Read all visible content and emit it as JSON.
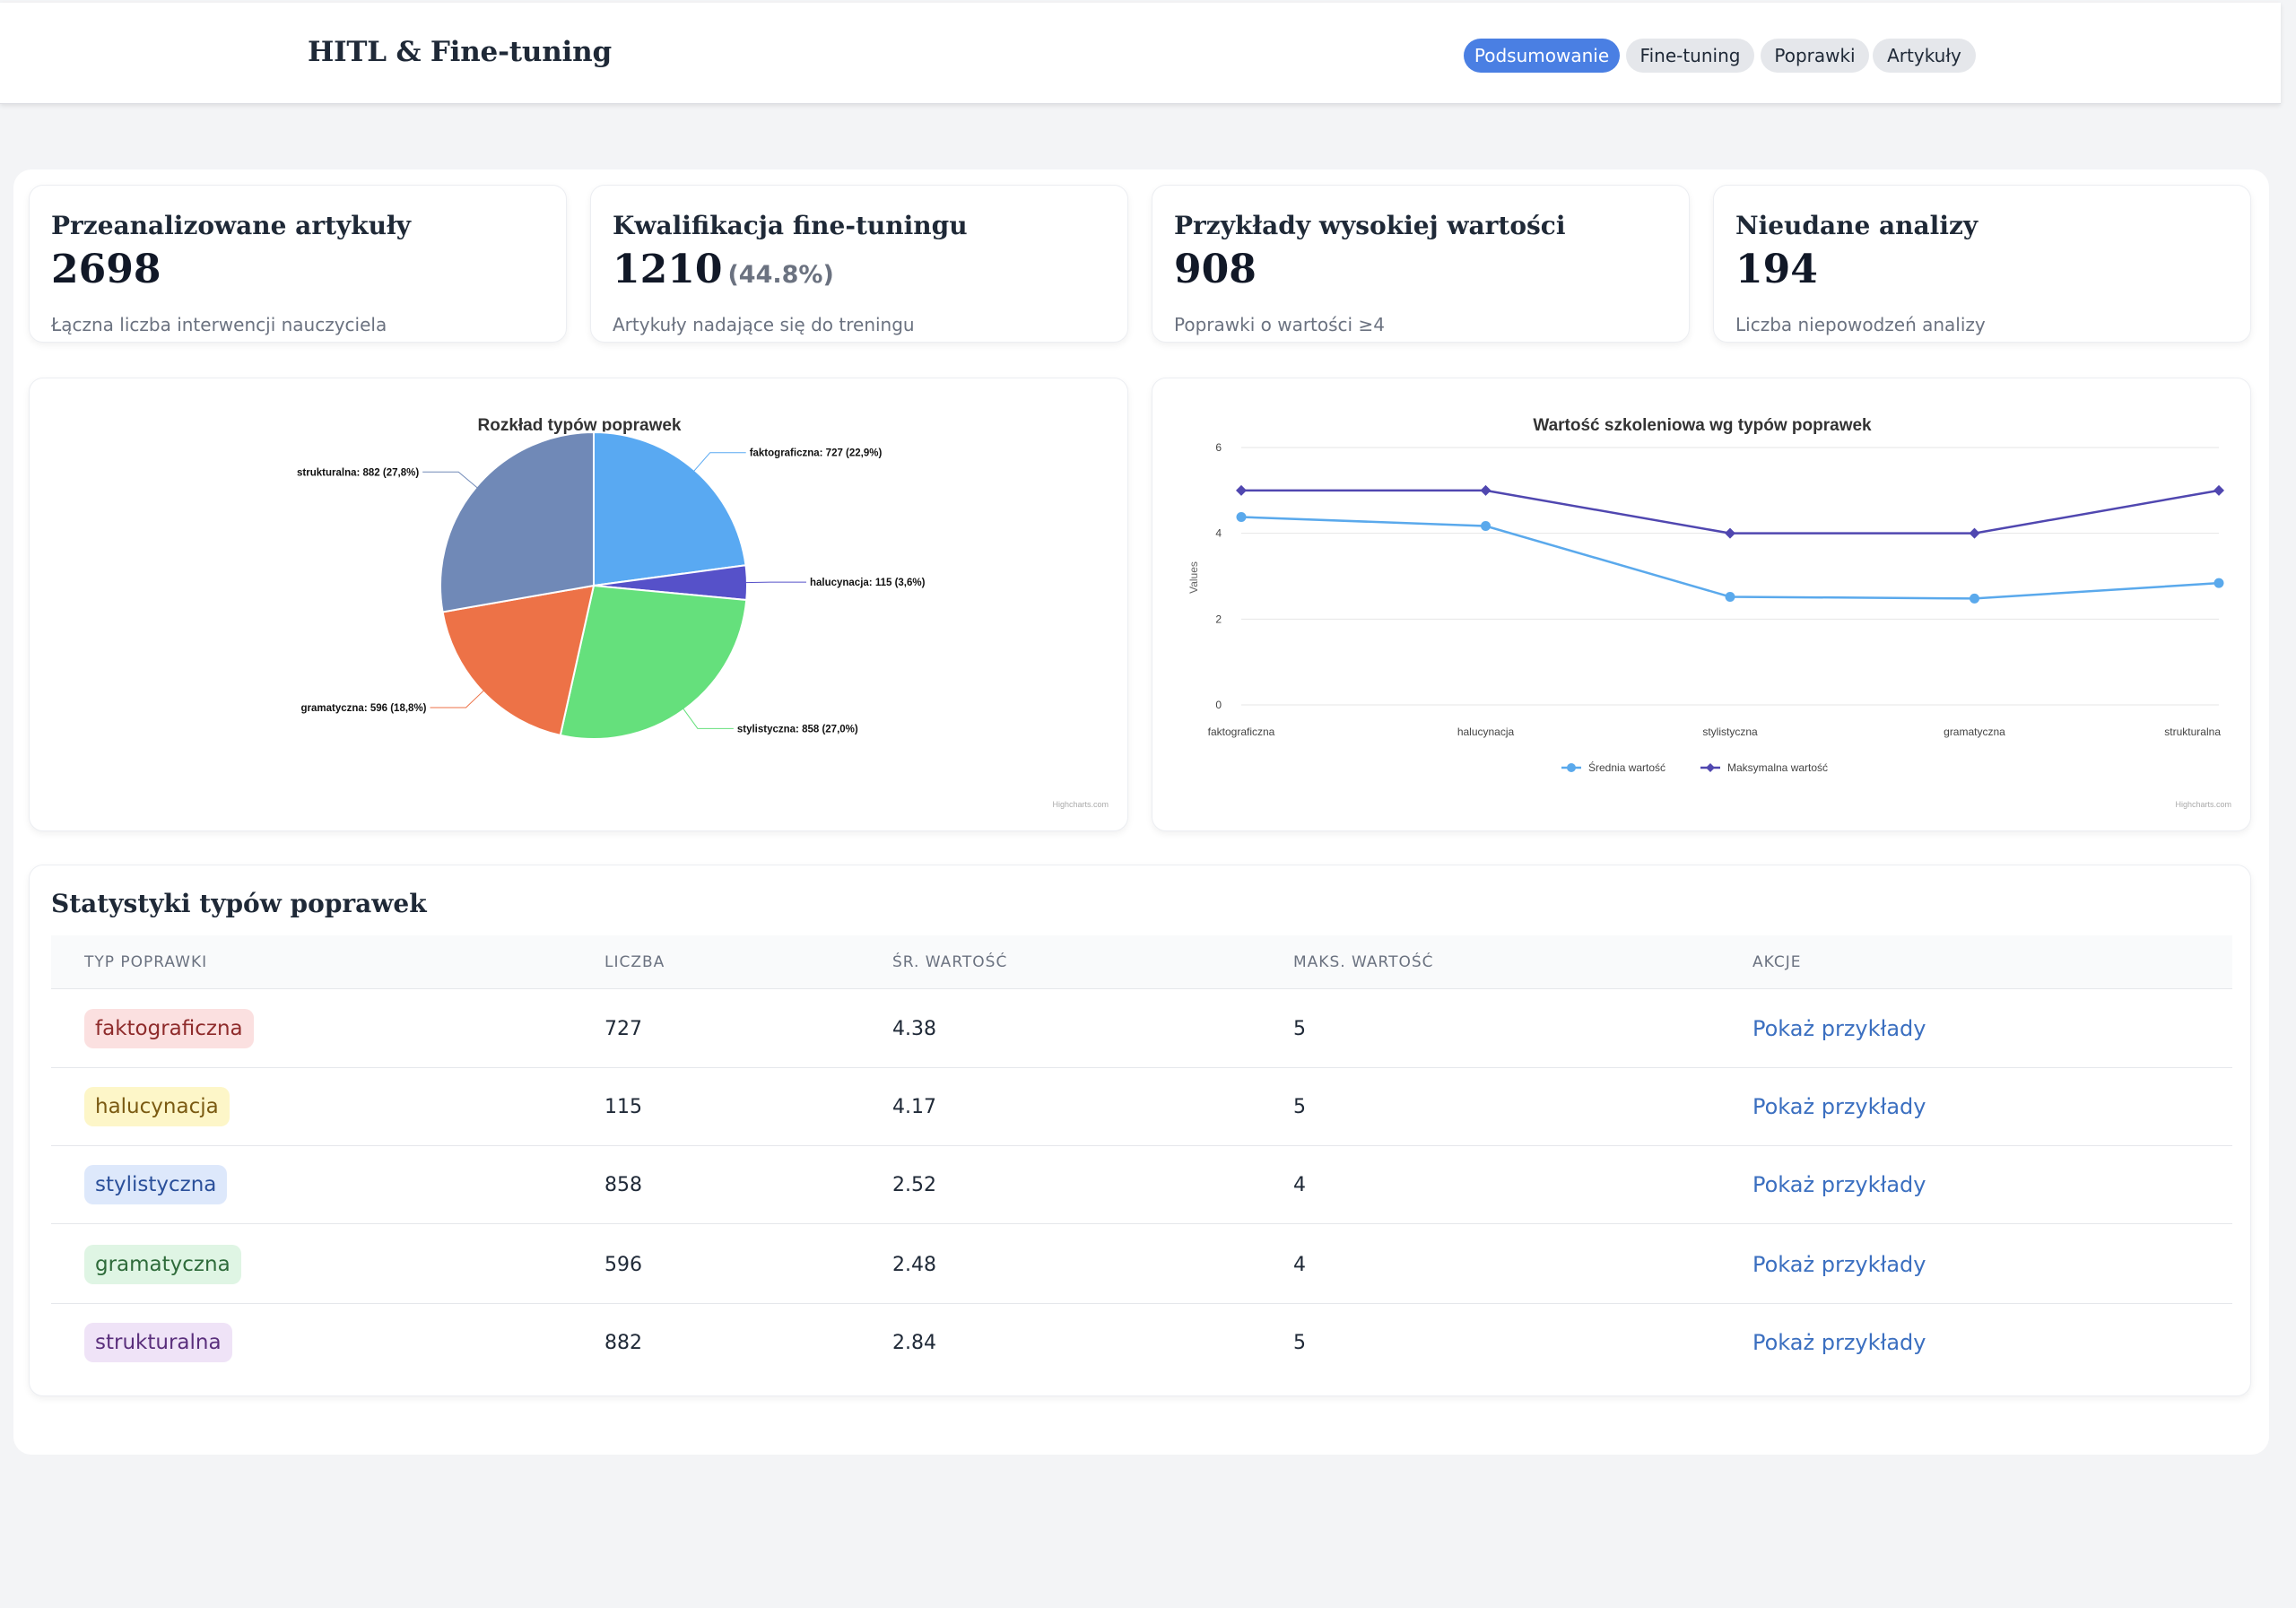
{
  "header": {
    "title": "HITL & Fine-tuning",
    "tabs": [
      {
        "label": "Podsumowanie",
        "active": true
      },
      {
        "label": "Fine-tuning",
        "active": false
      },
      {
        "label": "Poprawki",
        "active": false
      },
      {
        "label": "Artykuły",
        "active": false
      }
    ]
  },
  "stats": [
    {
      "title": "Przeanalizowane artykuły",
      "value": "2698",
      "extra": "",
      "desc": "Łączna liczba interwencji nauczyciela"
    },
    {
      "title": "Kwalifikacja fine-tuningu",
      "value": "1210",
      "extra": "(44.8%)",
      "desc": "Artykuły nadające się do treningu"
    },
    {
      "title": "Przykłady wysokiej wartości",
      "value": "908",
      "extra": "",
      "desc": "Poprawki o wartości ≥4"
    },
    {
      "title": "Nieudane analizy",
      "value": "194",
      "extra": "",
      "desc": "Liczba niepowodzeń analizy"
    }
  ],
  "chart_data": [
    {
      "type": "pie",
      "title": "Rozkład typów poprawek",
      "slices": [
        {
          "name": "faktograficzna",
          "value": 727,
          "label": "faktograficzna: 727 (22,9%)",
          "color": "#59a9f2"
        },
        {
          "name": "halucynacja",
          "value": 115,
          "label": "halucynacja: 115 (3,6%)",
          "color": "#5651c9"
        },
        {
          "name": "stylistyczna",
          "value": 858,
          "label": "stylistyczna: 858 (27,0%)",
          "color": "#65e07c"
        },
        {
          "name": "gramatyczna",
          "value": 596,
          "label": "gramatyczna: 596 (18,8%)",
          "color": "#ed7247"
        },
        {
          "name": "strukturalna",
          "value": 882,
          "label": "strukturalna: 882 (27,8%)",
          "color": "#7089b7"
        }
      ],
      "credit": "Highcharts.com"
    },
    {
      "type": "line",
      "title": "Wartość szkoleniowa wg typów poprawek",
      "ylabel": "Values",
      "ylim": [
        0,
        6
      ],
      "yticks": [
        0,
        2,
        4,
        6
      ],
      "categories": [
        "faktograficzna",
        "halucynacja",
        "stylistyczna",
        "gramatyczna",
        "strukturalna"
      ],
      "series": [
        {
          "name": "Średnia wartość",
          "values": [
            4.38,
            4.17,
            2.52,
            2.48,
            2.84
          ],
          "color": "#5aa9ec",
          "marker": "circle"
        },
        {
          "name": "Maksymalna wartość",
          "values": [
            5,
            5,
            4,
            4,
            5
          ],
          "color": "#5047b0",
          "marker": "diamond"
        }
      ],
      "credit": "Highcharts.com"
    }
  ],
  "table": {
    "title": "Statystyki typów poprawek",
    "headers": [
      "TYP POPRAWKI",
      "LICZBA",
      "ŚR. WARTOŚĆ",
      "MAKS. WARTOŚĆ",
      "AKCJE"
    ],
    "rows": [
      {
        "type": "faktograficzna",
        "count": "727",
        "avg": "4.38",
        "max": "5",
        "action": "Pokaż przykłady",
        "pill_bg": "#fbe0e0",
        "pill_fg": "#8e2b2b"
      },
      {
        "type": "halucynacja",
        "count": "115",
        "avg": "4.17",
        "max": "5",
        "action": "Pokaż przykłady",
        "pill_bg": "#fdf6c8",
        "pill_fg": "#7a5a12"
      },
      {
        "type": "stylistyczna",
        "count": "858",
        "avg": "2.52",
        "max": "4",
        "action": "Pokaż przykłady",
        "pill_bg": "#dde8fb",
        "pill_fg": "#2a4f9a"
      },
      {
        "type": "gramatyczna",
        "count": "596",
        "avg": "2.48",
        "max": "4",
        "action": "Pokaż przykłady",
        "pill_bg": "#dff5e4",
        "pill_fg": "#2e6b3a"
      },
      {
        "type": "strukturalna",
        "count": "882",
        "avg": "2.84",
        "max": "5",
        "action": "Pokaż przykłady",
        "pill_bg": "#efe3f7",
        "pill_fg": "#5a2f7c"
      }
    ]
  }
}
